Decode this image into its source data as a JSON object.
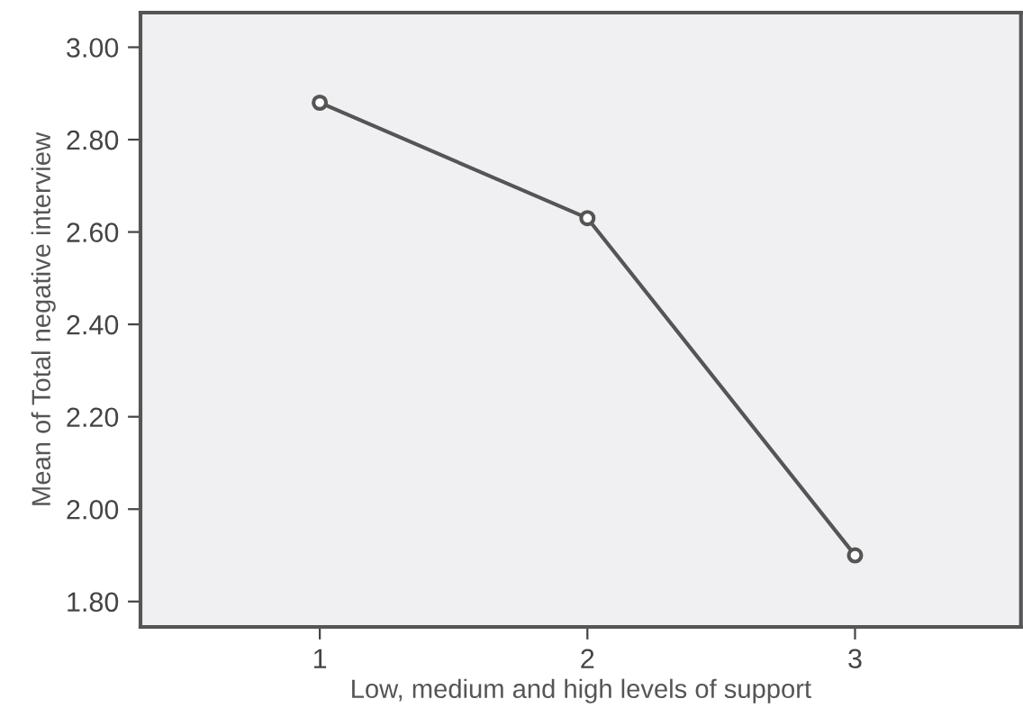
{
  "chart_data": {
    "type": "line",
    "xlabel": "Low, medium and high levels of support",
    "ylabel": "Mean of Total negative interview",
    "x": [
      1,
      2,
      3
    ],
    "series": [
      {
        "color": "#555555",
        "values": [
          2.88,
          2.63,
          1.9
        ]
      }
    ],
    "xlim": [
      0.33,
      3.62
    ],
    "xticks": [
      1,
      2,
      3
    ],
    "ylim": [
      1.745,
      3.075
    ],
    "yticks": [
      {
        "value": 1.8,
        "label": "1.80"
      },
      {
        "value": 2.0,
        "label": "2.00"
      },
      {
        "value": 2.2,
        "label": "2.20"
      },
      {
        "value": 2.4,
        "label": "2.40"
      },
      {
        "value": 2.6,
        "label": "2.60"
      },
      {
        "value": 2.8,
        "label": "2.80"
      },
      {
        "value": 3.0,
        "label": "3.00"
      }
    ],
    "marker": "circle",
    "line_style": "solid",
    "grid": false
  }
}
